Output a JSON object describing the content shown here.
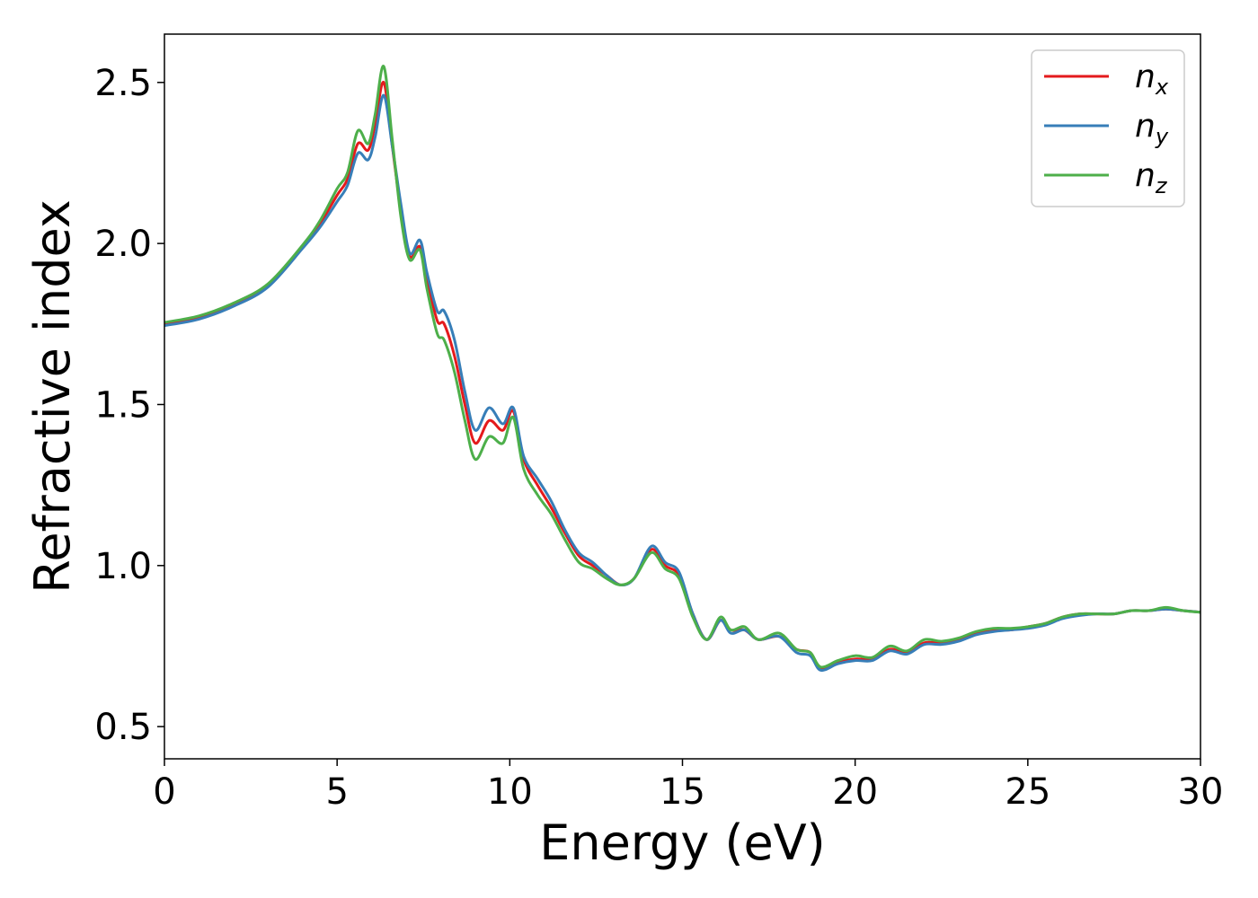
{
  "chart_data": {
    "type": "line",
    "xlabel": "Energy (eV)",
    "ylabel": "Refractive index",
    "xlim": [
      0,
      30
    ],
    "ylim": [
      0.4,
      2.65
    ],
    "xticks": [
      0,
      5,
      10,
      15,
      20,
      25,
      30
    ],
    "xtick_labels": [
      "0",
      "5",
      "10",
      "15",
      "20",
      "25",
      "30"
    ],
    "yticks": [
      0.5,
      1.0,
      1.5,
      2.0,
      2.5
    ],
    "ytick_labels": [
      "0.5",
      "1.0",
      "1.5",
      "2.0",
      "2.5"
    ],
    "grid": false,
    "legend_position": "top-right",
    "x": [
      0,
      1,
      2,
      3,
      4,
      4.5,
      5,
      5.3,
      5.6,
      5.9,
      6.1,
      6.35,
      6.6,
      6.85,
      7.1,
      7.4,
      7.6,
      7.9,
      8.1,
      8.4,
      8.7,
      9.0,
      9.4,
      9.8,
      10.1,
      10.4,
      10.8,
      11.2,
      11.6,
      12.0,
      12.4,
      12.8,
      13.2,
      13.6,
      14.1,
      14.5,
      14.9,
      15.3,
      15.7,
      16.1,
      16.4,
      16.8,
      17.2,
      17.8,
      18.3,
      18.7,
      19.0,
      19.5,
      20.0,
      20.5,
      21.0,
      21.5,
      22.0,
      22.5,
      23.0,
      23.5,
      24.0,
      24.5,
      25.0,
      25.5,
      26.0,
      26.5,
      27.0,
      27.5,
      28.0,
      28.5,
      29.0,
      29.5,
      30.0
    ],
    "series": [
      {
        "name": "n_x",
        "label_base": "n",
        "label_sub": "x",
        "color": "#e41a1c",
        "values": [
          1.75,
          1.77,
          1.81,
          1.87,
          1.99,
          2.06,
          2.15,
          2.2,
          2.31,
          2.29,
          2.37,
          2.5,
          2.3,
          2.1,
          1.96,
          1.99,
          1.89,
          1.76,
          1.75,
          1.65,
          1.5,
          1.38,
          1.45,
          1.42,
          1.48,
          1.33,
          1.25,
          1.18,
          1.1,
          1.03,
          1.0,
          0.97,
          0.94,
          0.96,
          1.05,
          1.0,
          0.97,
          0.85,
          0.77,
          0.83,
          0.8,
          0.8,
          0.77,
          0.78,
          0.74,
          0.73,
          0.68,
          0.7,
          0.71,
          0.71,
          0.74,
          0.73,
          0.76,
          0.76,
          0.77,
          0.79,
          0.8,
          0.8,
          0.81,
          0.82,
          0.84,
          0.85,
          0.85,
          0.85,
          0.86,
          0.86,
          0.865,
          0.86,
          0.855
        ]
      },
      {
        "name": "n_y",
        "label_base": "n",
        "label_sub": "y",
        "color": "#377eb8",
        "values": [
          1.745,
          1.765,
          1.805,
          1.865,
          1.985,
          2.05,
          2.13,
          2.18,
          2.28,
          2.26,
          2.33,
          2.46,
          2.3,
          2.12,
          1.97,
          2.01,
          1.91,
          1.79,
          1.79,
          1.7,
          1.54,
          1.42,
          1.49,
          1.44,
          1.49,
          1.34,
          1.27,
          1.2,
          1.11,
          1.04,
          1.01,
          0.97,
          0.94,
          0.96,
          1.06,
          1.01,
          0.98,
          0.85,
          0.77,
          0.83,
          0.79,
          0.8,
          0.77,
          0.78,
          0.73,
          0.72,
          0.675,
          0.695,
          0.705,
          0.705,
          0.735,
          0.725,
          0.755,
          0.755,
          0.765,
          0.785,
          0.795,
          0.8,
          0.805,
          0.815,
          0.835,
          0.845,
          0.85,
          0.85,
          0.86,
          0.86,
          0.865,
          0.86,
          0.855
        ]
      },
      {
        "name": "n_z",
        "label_base": "n",
        "label_sub": "z",
        "color": "#4daf4a",
        "values": [
          1.755,
          1.775,
          1.815,
          1.875,
          1.995,
          2.07,
          2.17,
          2.22,
          2.35,
          2.31,
          2.4,
          2.55,
          2.32,
          2.08,
          1.95,
          1.98,
          1.86,
          1.72,
          1.7,
          1.6,
          1.45,
          1.33,
          1.4,
          1.38,
          1.46,
          1.3,
          1.22,
          1.16,
          1.08,
          1.01,
          0.99,
          0.96,
          0.94,
          0.96,
          1.04,
          0.99,
          0.96,
          0.84,
          0.77,
          0.84,
          0.8,
          0.81,
          0.77,
          0.79,
          0.74,
          0.73,
          0.685,
          0.705,
          0.72,
          0.715,
          0.75,
          0.735,
          0.77,
          0.765,
          0.775,
          0.795,
          0.805,
          0.805,
          0.81,
          0.82,
          0.84,
          0.85,
          0.85,
          0.85,
          0.86,
          0.86,
          0.87,
          0.86,
          0.855
        ]
      }
    ]
  }
}
